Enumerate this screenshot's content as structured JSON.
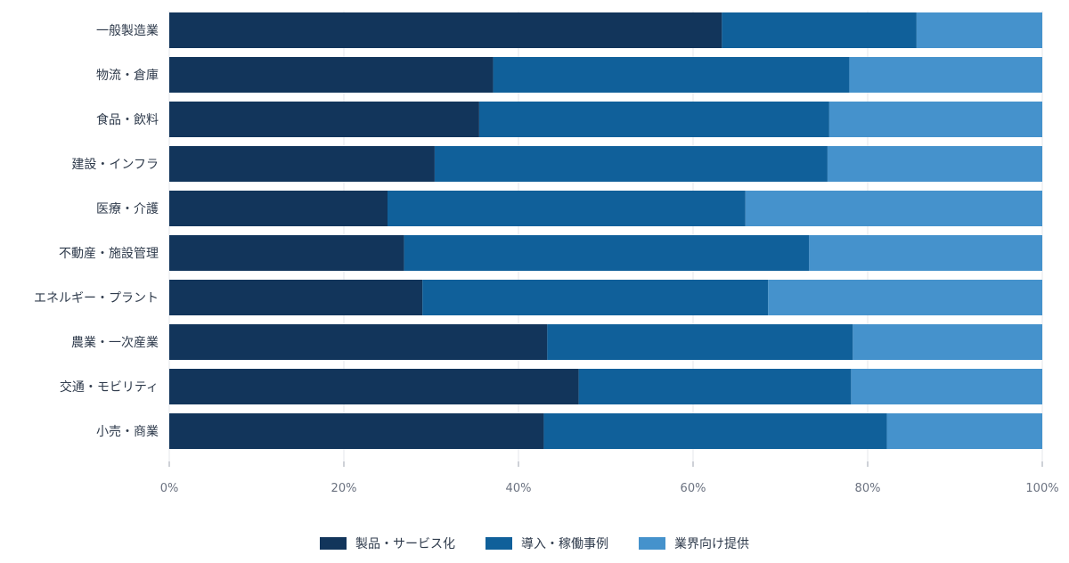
{
  "chart_data": {
    "type": "bar",
    "orientation": "horizontal",
    "stacked": true,
    "categories": [
      "一般製造業",
      "物流・倉庫",
      "食品・飲料",
      "建設・インフラ",
      "医療・介護",
      "不動産・施設管理",
      "エネルギー・プラント",
      "農業・一次産業",
      "交通・モビリティ",
      "小売・商業"
    ],
    "series": [
      {
        "name": "製品・サービス化",
        "color": "#12355b",
        "values": [
          63.3,
          37.1,
          35.5,
          30.4,
          25.0,
          26.9,
          29.0,
          43.3,
          46.9,
          42.9
        ]
      },
      {
        "name": "導入・稼働事例",
        "color": "#10609a",
        "values": [
          22.3,
          40.8,
          40.1,
          45.0,
          41.0,
          46.4,
          39.6,
          35.0,
          31.2,
          39.3
        ]
      },
      {
        "name": "業界向け提供",
        "color": "#4592cc",
        "values": [
          14.4,
          22.1,
          24.4,
          24.6,
          34.0,
          26.7,
          31.4,
          21.7,
          21.9,
          17.8
        ]
      }
    ],
    "x_ticks": [
      "0%",
      "20%",
      "40%",
      "60%",
      "80%",
      "100%"
    ],
    "xlim": [
      0,
      100
    ],
    "legend_position": "bottom"
  }
}
